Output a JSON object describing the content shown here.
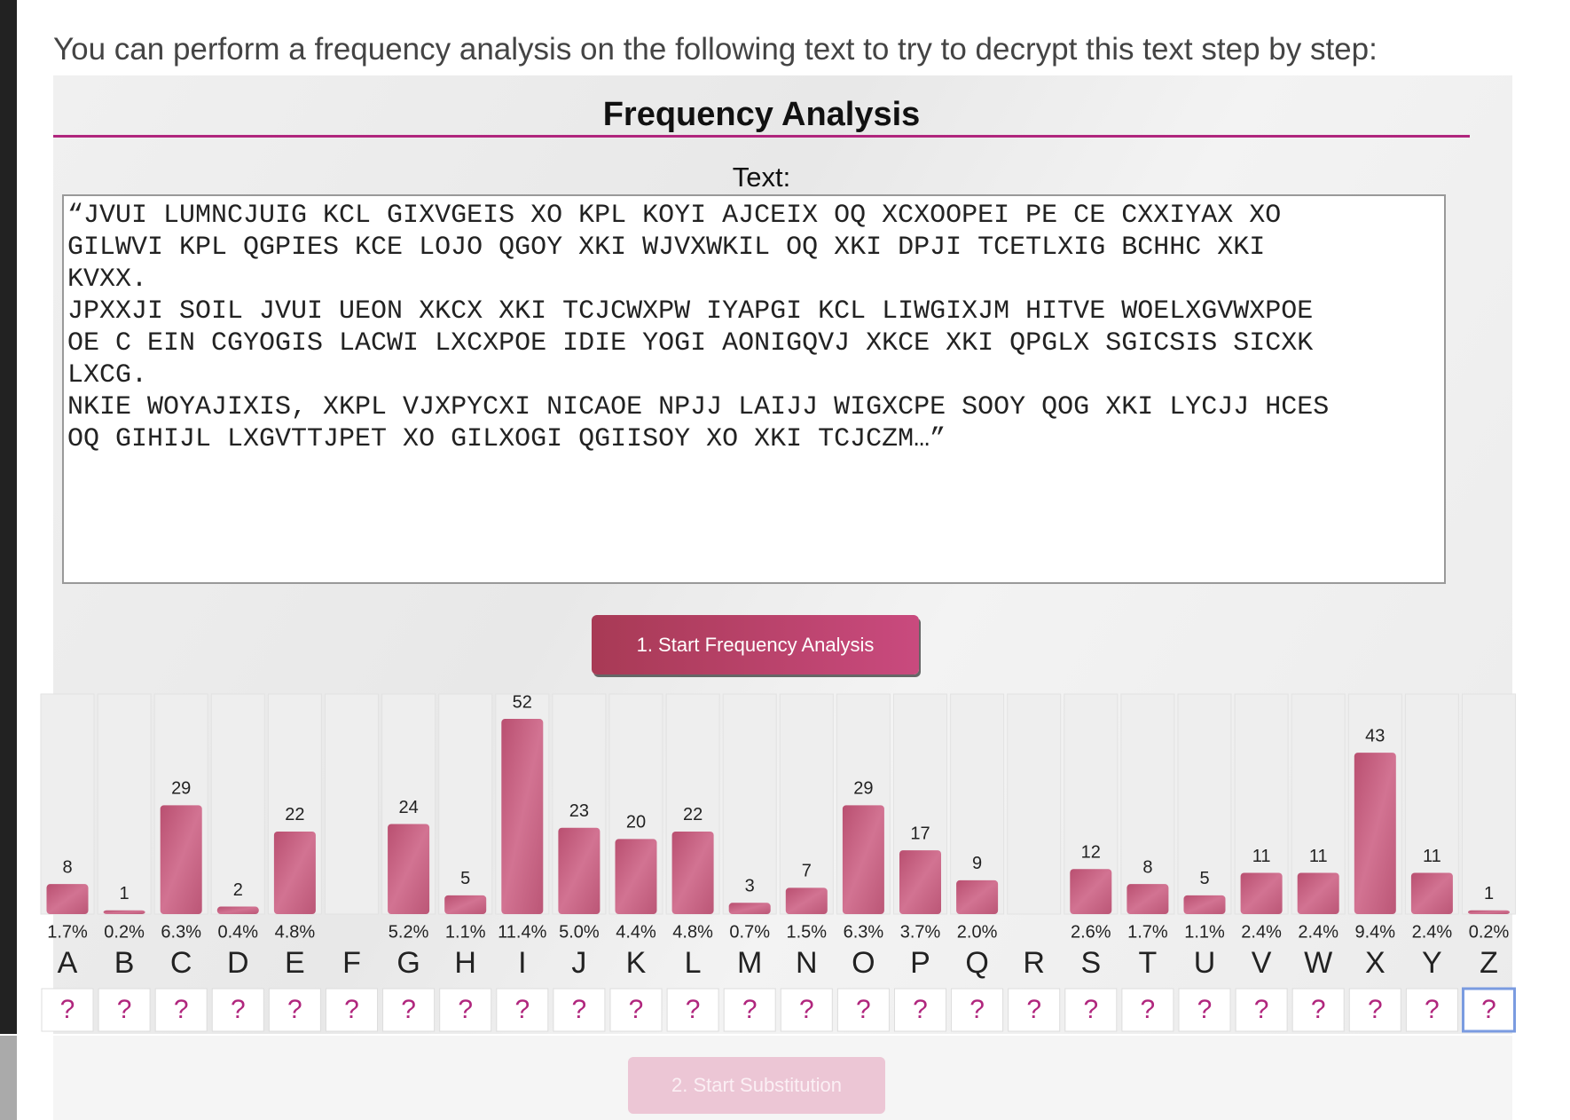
{
  "intro": "You can perform a frequency analysis on the following text to try to decrypt this text step by step:",
  "title": "Frequency Analysis",
  "text_label": "Text:",
  "cipher_text": {
    "lines": [
      "“JVUI LUMNCJUIG KCL GIXVGEIS XO KPL KOYI AJCEIX OQ XCXOOPEI PE CE CXXIYAX XO",
      "GILWVI KPL QGPIES KCE LOJO QGOY XKI WJVXWKIL OQ XKI DPJI TCETLXIG BCHHC XKI",
      "KVXX.",
      "JPXXJI SOIL JVUI UEON XKCX XKI TCJCWXPW IYAPGI KCL LIWGIXJM HITVE WOELXGVWXPOE",
      "OE C EIN CGYOGIS LACWI LXCXPOE IDIE YOGI AONIGQVJ XKCE XKI QPGLX SGICSIS SICXK",
      "LXCG.",
      "NKIE WOYAJIXIS, XKPL VJXPYCXI NICAOE NPJJ LAIJJ WIGXCPE SOOY QOG XKI LYCJJ HCES",
      "OQ GIHIJL LXGVTTJPET XO GILXOGI QGIISOY XO XKI TCJCZM…”"
    ]
  },
  "button_start_analysis": "1. Start Frequency Analysis",
  "chart_data": {
    "type": "bar",
    "color": "#c8607f",
    "categories": [
      "A",
      "B",
      "C",
      "D",
      "E",
      "F",
      "G",
      "H",
      "I",
      "J",
      "K",
      "L",
      "M",
      "N",
      "O",
      "P",
      "Q",
      "R",
      "S",
      "T",
      "U",
      "V",
      "W",
      "X",
      "Y",
      "Z"
    ],
    "values": [
      8,
      1,
      29,
      2,
      22,
      null,
      24,
      5,
      52,
      23,
      20,
      22,
      3,
      7,
      29,
      17,
      9,
      null,
      12,
      8,
      5,
      11,
      11,
      43,
      11,
      1
    ],
    "percent_labels": [
      "1.7%",
      "0.2%",
      "6.3%",
      "0.4%",
      "4.8%",
      null,
      "5.2%",
      "1.1%",
      "11.4%",
      "5.0%",
      "4.4%",
      "4.8%",
      "0.7%",
      "1.5%",
      "6.3%",
      "3.7%",
      "2.0%",
      null,
      "2.6%",
      "1.7%",
      "1.1%",
      "2.4%",
      "2.4%",
      "9.4%",
      "2.4%",
      "0.2%"
    ],
    "substitutions": [
      "?",
      "?",
      "?",
      "?",
      "?",
      "?",
      "?",
      "?",
      "?",
      "?",
      "?",
      "?",
      "?",
      "?",
      "?",
      "?",
      "?",
      "?",
      "?",
      "?",
      "?",
      "?",
      "?",
      "?",
      "?",
      "?"
    ]
  },
  "button_start_substitution": "2. Start Substitution"
}
